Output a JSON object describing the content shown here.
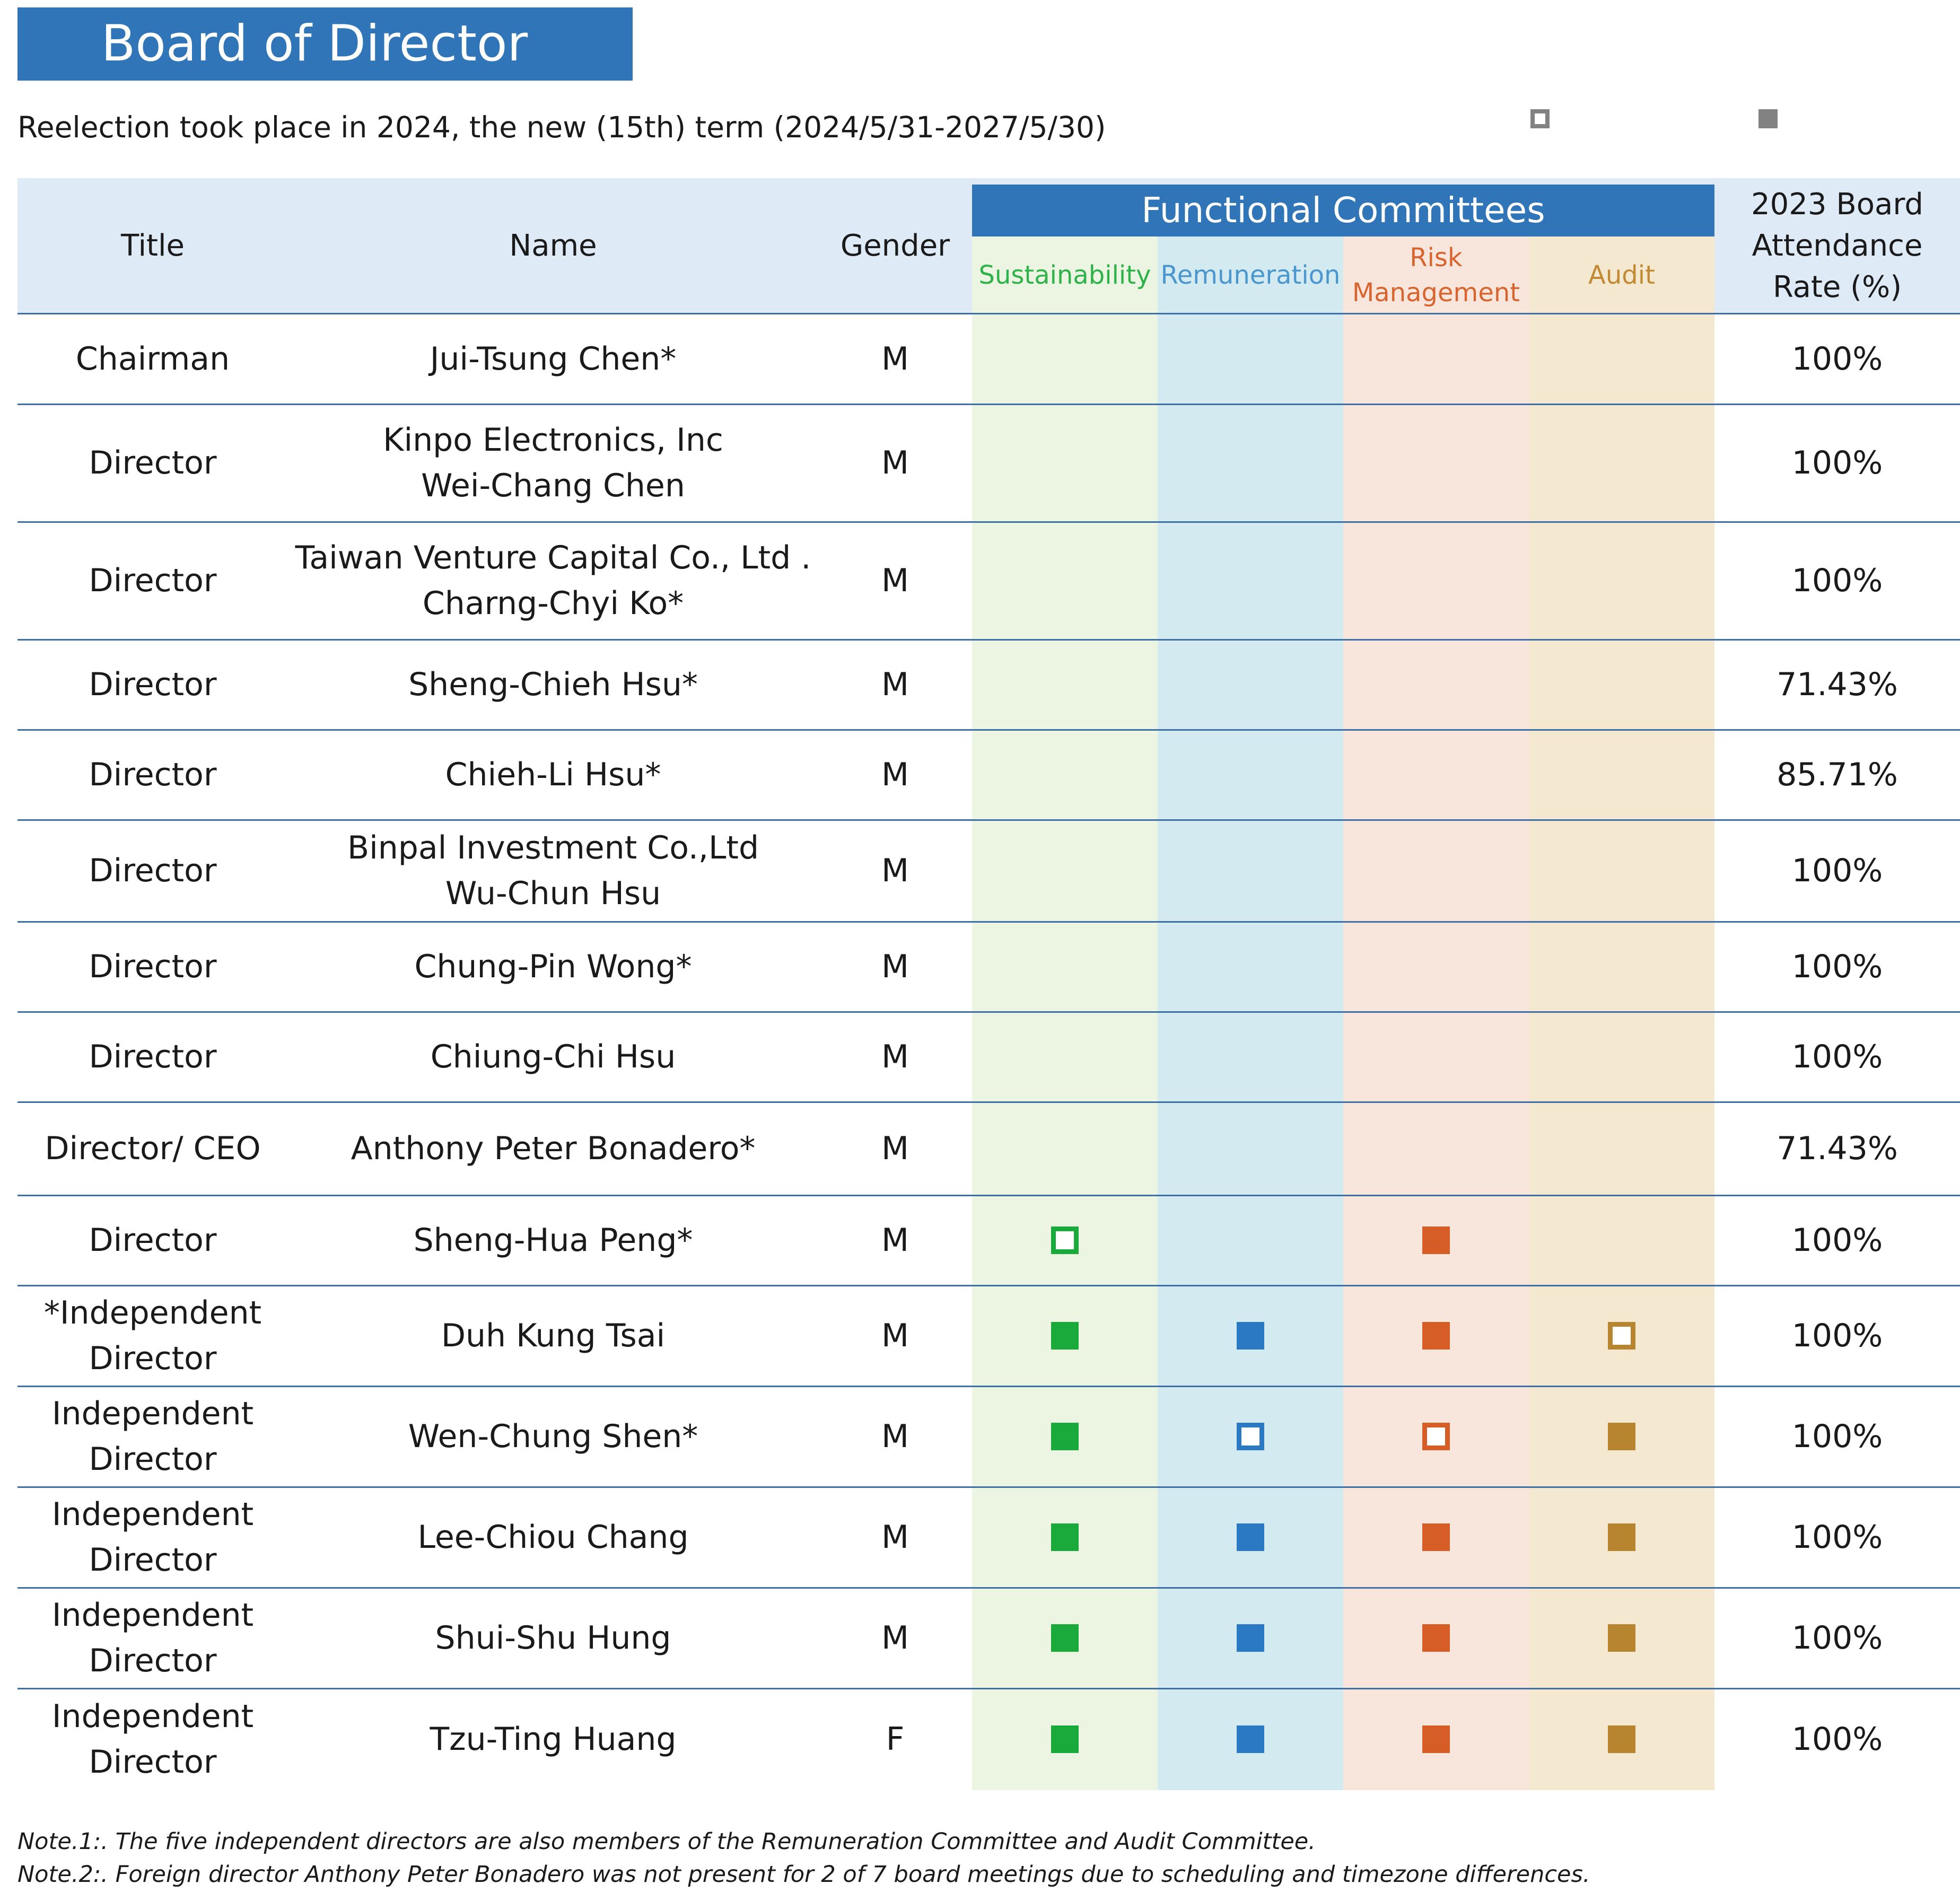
{
  "title": "Board of Director",
  "subtitle": "Reelection took place in 2024, the new (15th) term (2024/5/31-2027/5/30)",
  "legend": {
    "hollow": {
      "label": "",
      "color": "#828282"
    },
    "filled": {
      "label": "",
      "color": "#828282"
    }
  },
  "header": {
    "title": "Title",
    "name": "Name",
    "gender": "Gender",
    "functional_committees": "Functional Committees",
    "committees": [
      "Sustainability",
      "Remuneration",
      "Risk\nManagement",
      "Audit"
    ],
    "attendance": "2023 Board\nAttendance\nRate (%)"
  },
  "committee_colors": [
    "#1aaa3c",
    "#2c79c3",
    "#d75d27",
    "#b7842f"
  ],
  "rows": [
    {
      "title": "Chairman",
      "name": "Jui-Tsung Chen*",
      "gender": "M",
      "attendance": "100%",
      "marks": [
        "",
        "",
        "",
        ""
      ]
    },
    {
      "title": "Director",
      "name": "Kinpo Electronics, Inc\nWei-Chang Chen",
      "gender": "M",
      "attendance": "100%",
      "marks": [
        "",
        "",
        "",
        ""
      ]
    },
    {
      "title": "Director",
      "name": "Taiwan Venture Capital Co., Ltd .\nCharng-Chyi Ko*",
      "gender": "M",
      "attendance": "100%",
      "marks": [
        "",
        "",
        "",
        ""
      ]
    },
    {
      "title": "Director",
      "name": "Sheng-Chieh Hsu*",
      "gender": "M",
      "attendance": "71.43%",
      "marks": [
        "",
        "",
        "",
        ""
      ]
    },
    {
      "title": "Director",
      "name": "Chieh-Li Hsu*",
      "gender": "M",
      "attendance": "85.71%",
      "marks": [
        "",
        "",
        "",
        ""
      ]
    },
    {
      "title": "Director",
      "name": "Binpal Investment Co.,Ltd\nWu-Chun Hsu",
      "gender": "M",
      "attendance": "100%",
      "marks": [
        "",
        "",
        "",
        ""
      ]
    },
    {
      "title": "Director",
      "name": "Chung-Pin Wong*",
      "gender": "M",
      "attendance": "100%",
      "marks": [
        "",
        "",
        "",
        ""
      ]
    },
    {
      "title": "Director",
      "name": "Chiung-Chi Hsu",
      "gender": "M",
      "attendance": "100%",
      "marks": [
        "",
        "",
        "",
        ""
      ]
    },
    {
      "title": "Director/ CEO",
      "name": "Anthony Peter Bonadero*",
      "gender": "M",
      "attendance": "71.43%",
      "marks": [
        "",
        "",
        "",
        ""
      ]
    },
    {
      "title": "Director",
      "name": "Sheng-Hua Peng*",
      "gender": "M",
      "attendance": "100%",
      "marks": [
        "hollow",
        "",
        "filled",
        ""
      ]
    },
    {
      "title": "*Independent\nDirector",
      "name": "Duh Kung Tsai",
      "gender": "M",
      "attendance": "100%",
      "marks": [
        "filled",
        "filled",
        "filled",
        "hollow"
      ]
    },
    {
      "title": "Independent\nDirector",
      "name": "Wen-Chung Shen*",
      "gender": "M",
      "attendance": "100%",
      "marks": [
        "filled",
        "hollow",
        "hollow",
        "filled"
      ]
    },
    {
      "title": "Independent\nDirector",
      "name": "Lee-Chiou Chang",
      "gender": "M",
      "attendance": "100%",
      "marks": [
        "filled",
        "filled",
        "filled",
        "filled"
      ]
    },
    {
      "title": "Independent\nDirector",
      "name": "Shui-Shu Hung",
      "gender": "M",
      "attendance": "100%",
      "marks": [
        "filled",
        "filled",
        "filled",
        "filled"
      ]
    },
    {
      "title": "Independent\nDirector",
      "name": "Tzu-Ting Huang",
      "gender": "F",
      "attendance": "100%",
      "marks": [
        "filled",
        "filled",
        "filled",
        "filled"
      ]
    }
  ],
  "notes": [
    "Note.1:. The five independent directors are also members of the Remuneration Committee and Audit Committee.",
    "Note.2:. Foreign director Anthony Peter Bonadero was not present for 2 of 7 board meetings due to scheduling and timezone differences."
  ]
}
